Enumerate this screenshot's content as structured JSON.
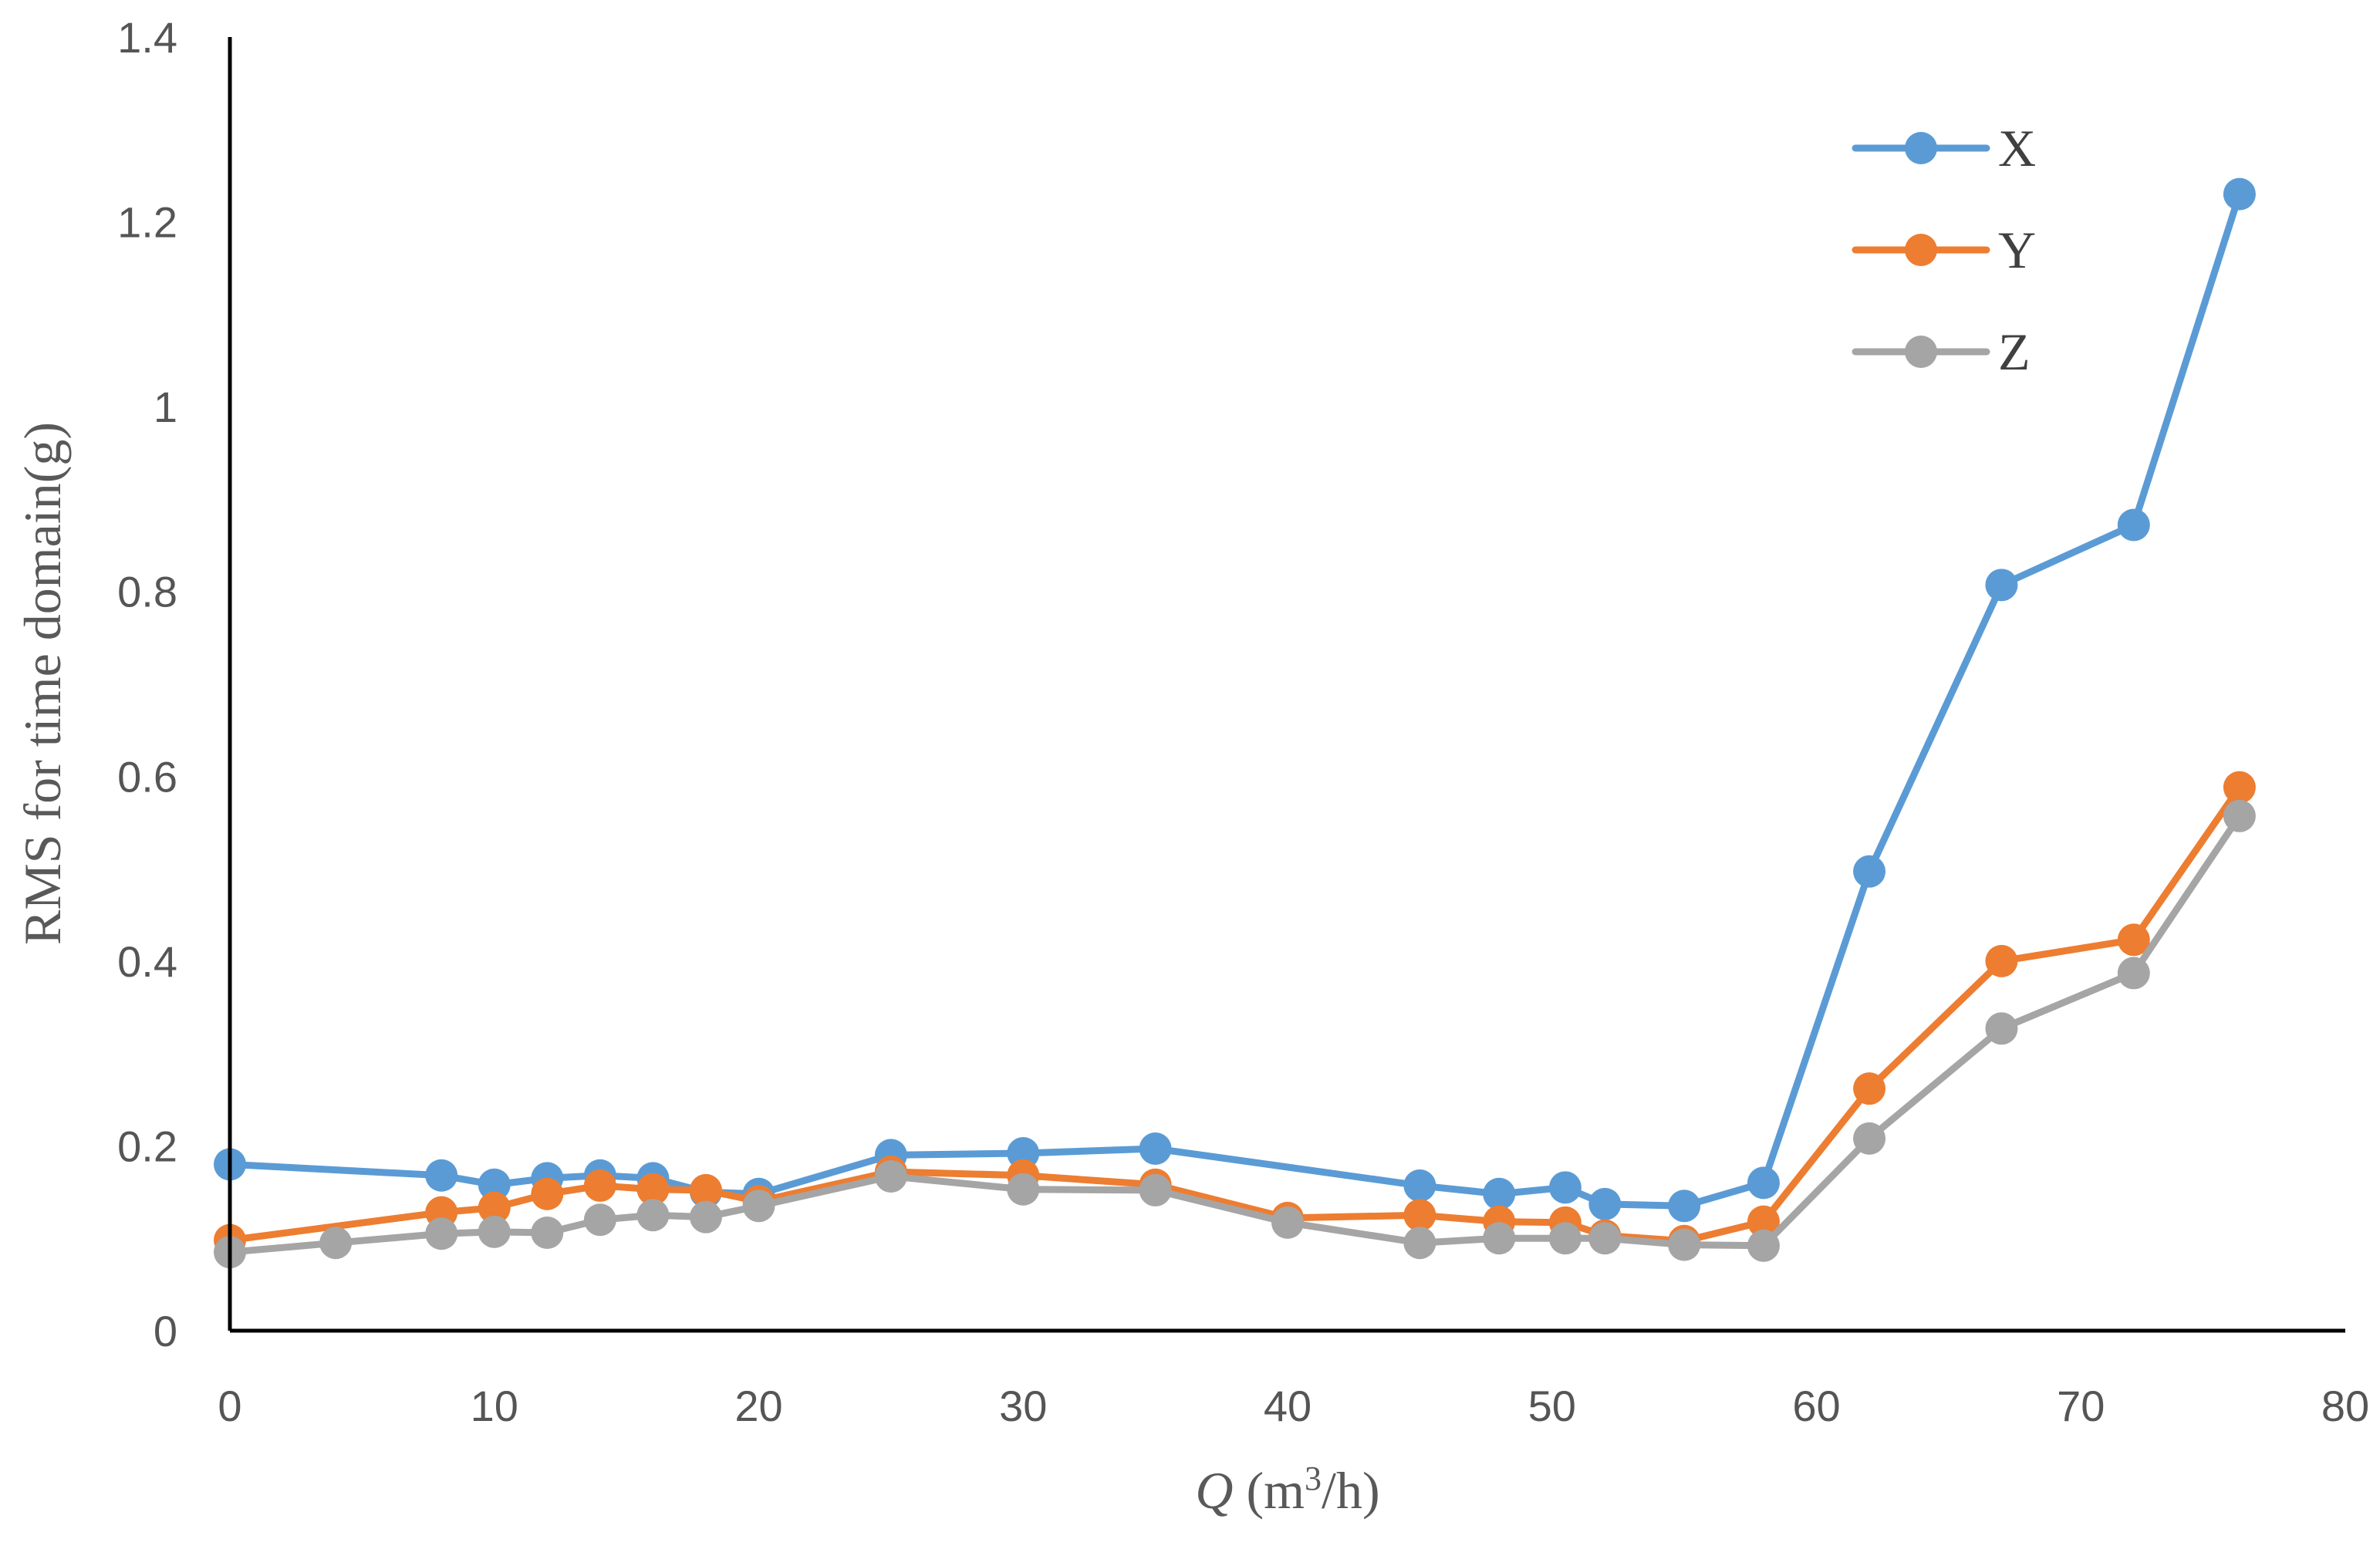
{
  "chart_data": {
    "type": "line",
    "title": "",
    "xlabel_symbol": "Q",
    "xlabel_unit_pre": " (m",
    "xlabel_sup": "3",
    "xlabel_unit_post": "/h)",
    "ylabel": "RMS for time domain(g)",
    "xlim": [
      0,
      80
    ],
    "ylim": [
      0,
      1.4
    ],
    "x_ticks": [
      "0",
      "10",
      "20",
      "30",
      "40",
      "50",
      "60",
      "70",
      "80"
    ],
    "y_ticks": [
      "0",
      "0.2",
      "0.4",
      "0.6",
      "0.8",
      "1",
      "1.2",
      "1.4"
    ],
    "grid": false,
    "legend_position": "top-right",
    "series": [
      {
        "name": "X",
        "color": "#5B9BD5",
        "x": [
          0,
          8,
          10,
          12,
          14,
          16,
          18,
          20,
          25,
          30,
          35,
          45,
          48,
          50.5,
          52,
          55,
          58,
          62,
          67,
          72,
          76
        ],
        "y": [
          0.18,
          0.168,
          0.158,
          0.165,
          0.168,
          0.165,
          0.15,
          0.148,
          0.19,
          0.192,
          0.197,
          0.157,
          0.148,
          0.155,
          0.137,
          0.135,
          0.16,
          0.497,
          0.807,
          0.872,
          1.23
        ]
      },
      {
        "name": "Y",
        "color": "#ED7D31",
        "x": [
          0,
          8,
          10,
          12,
          14,
          16,
          18,
          20,
          25,
          30,
          35,
          40,
          45,
          48,
          50.5,
          52,
          55,
          58,
          62,
          67,
          72,
          76
        ],
        "y": [
          0.098,
          0.128,
          0.133,
          0.148,
          0.157,
          0.153,
          0.152,
          0.14,
          0.172,
          0.168,
          0.158,
          0.122,
          0.125,
          0.118,
          0.117,
          0.103,
          0.097,
          0.118,
          0.262,
          0.4,
          0.423,
          0.588
        ]
      },
      {
        "name": "Z",
        "color": "#A5A5A5",
        "x": [
          0,
          4,
          8,
          10,
          12,
          14,
          16,
          18,
          20,
          25,
          30,
          35,
          40,
          45,
          48,
          50.5,
          52,
          55,
          58,
          62,
          67,
          72,
          76
        ],
        "y": [
          0.085,
          0.095,
          0.105,
          0.107,
          0.106,
          0.12,
          0.125,
          0.123,
          0.135,
          0.167,
          0.153,
          0.152,
          0.117,
          0.095,
          0.1,
          0.1,
          0.1,
          0.093,
          0.092,
          0.208,
          0.327,
          0.387,
          0.557
        ]
      }
    ]
  }
}
